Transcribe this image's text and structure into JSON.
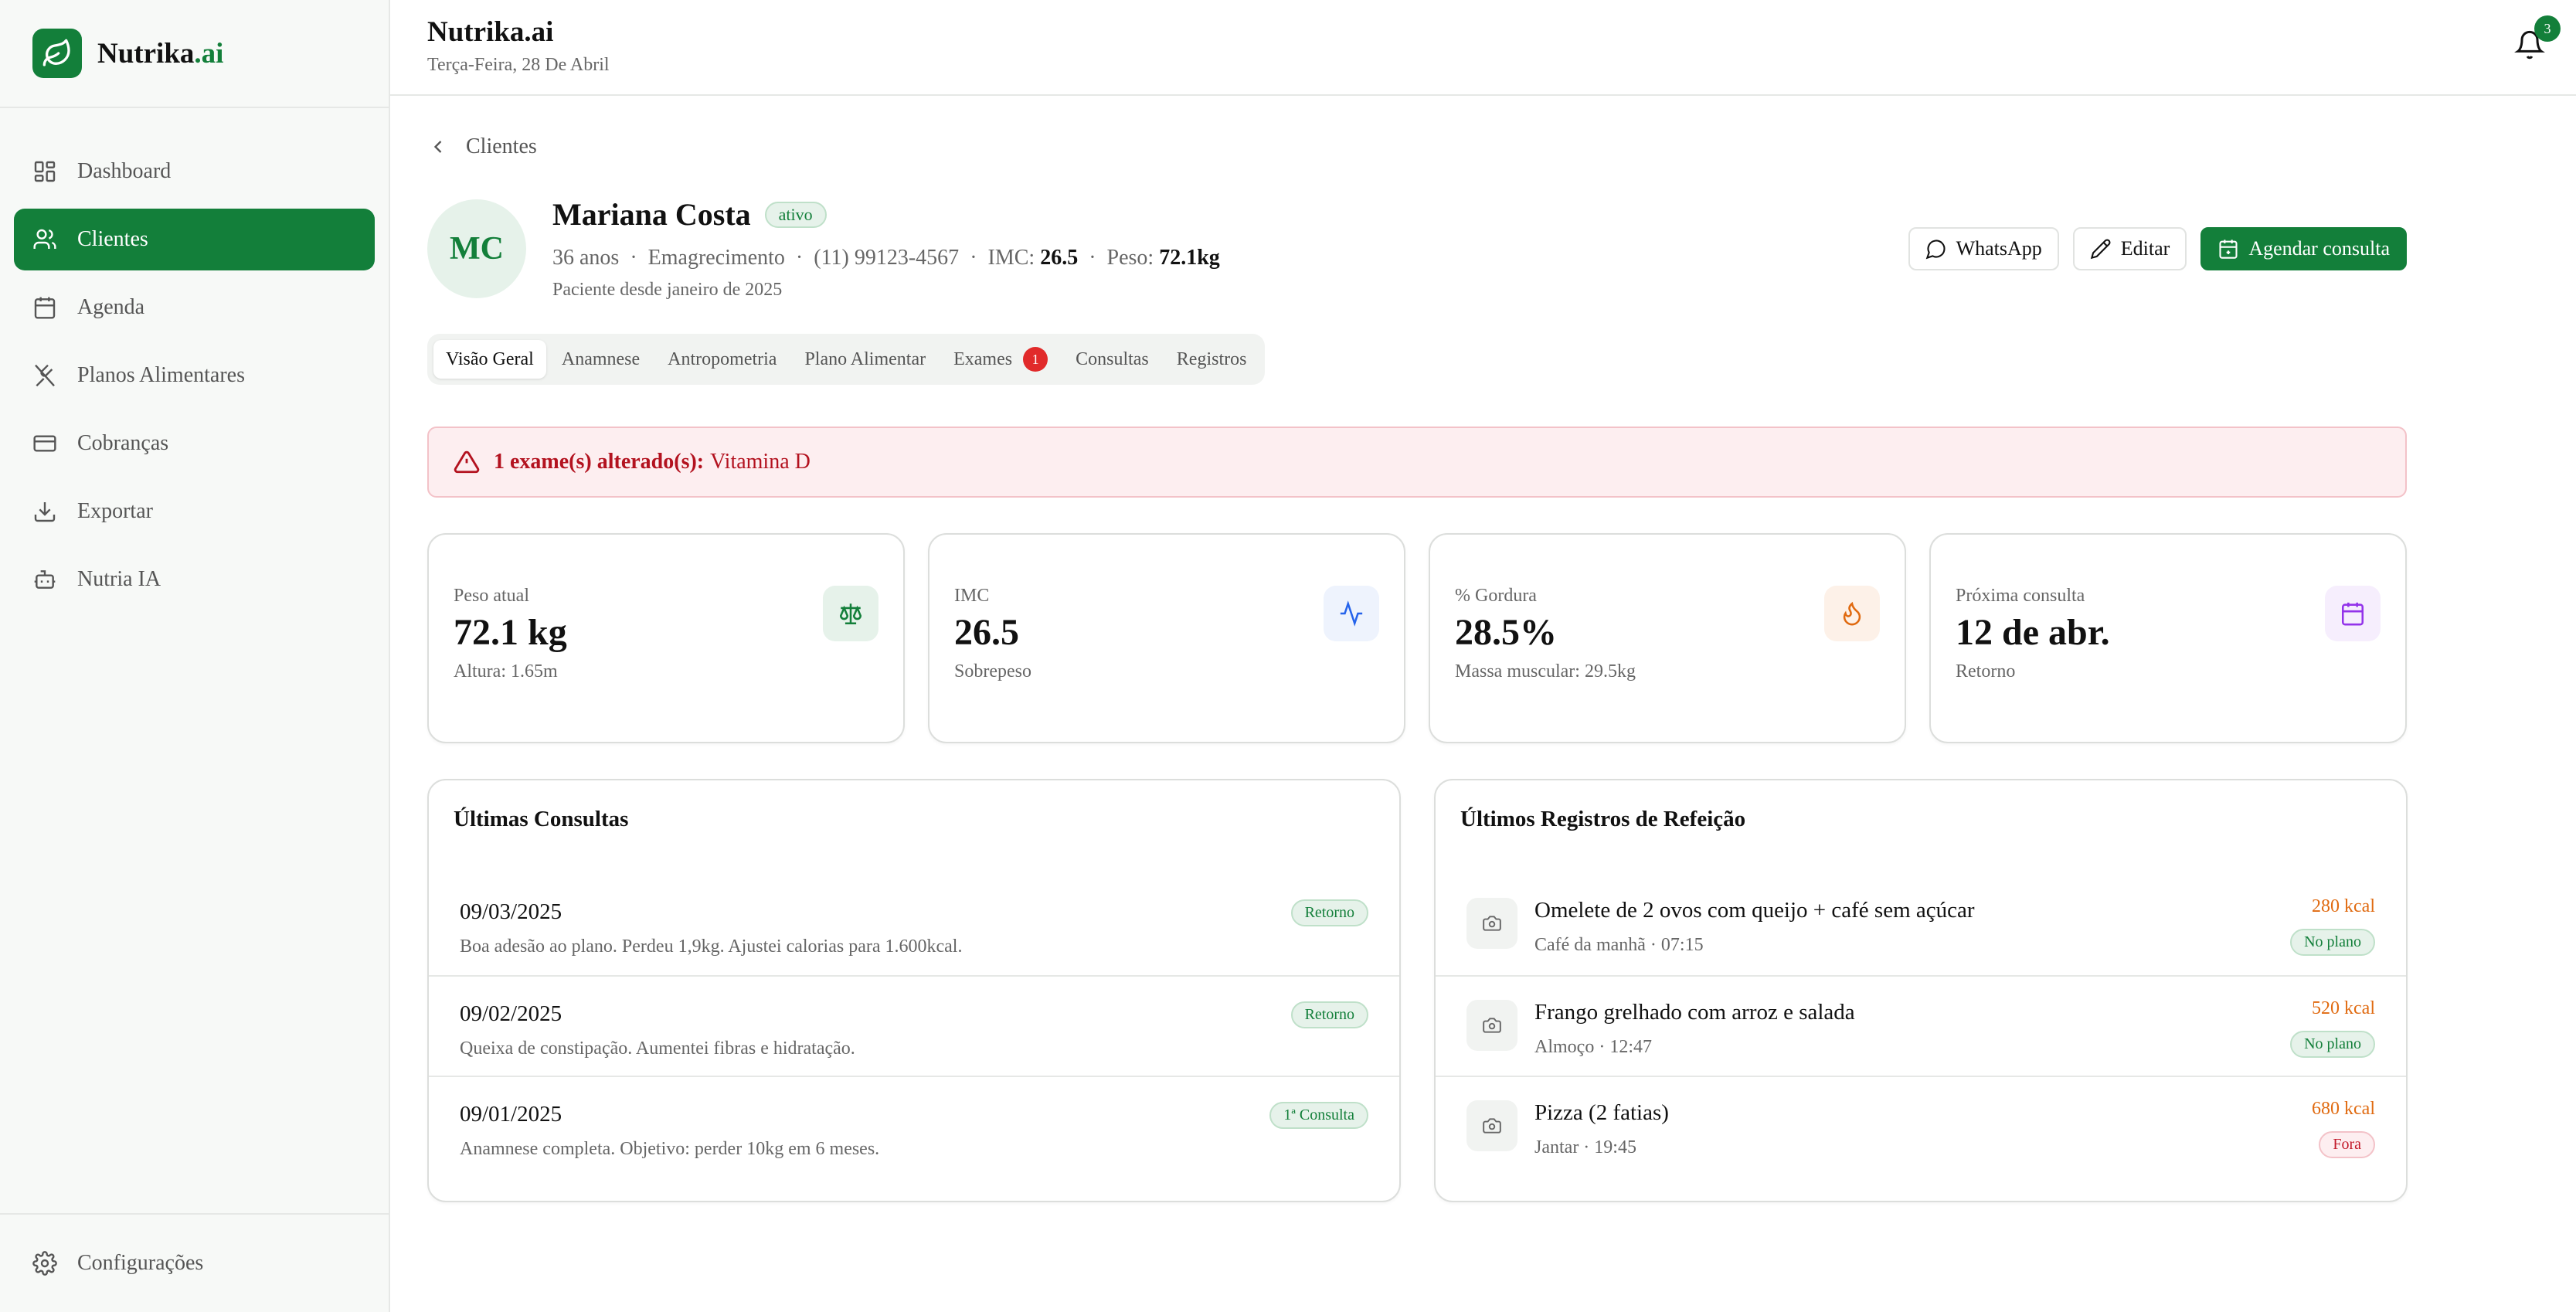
{
  "app": {
    "brand_main": "Nutrika",
    "brand_suffix": ".ai",
    "accent_color": "#137f3a"
  },
  "sidebar": {
    "items": [
      {
        "label": "Dashboard",
        "icon": "dashboard-icon"
      },
      {
        "label": "Clientes",
        "icon": "users-icon",
        "active": true
      },
      {
        "label": "Agenda",
        "icon": "calendar-icon"
      },
      {
        "label": "Planos Alimentares",
        "icon": "utensils-icon"
      },
      {
        "label": "Cobranças",
        "icon": "credit-card-icon"
      },
      {
        "label": "Exportar",
        "icon": "download-icon"
      },
      {
        "label": "Nutria IA",
        "icon": "bot-icon"
      }
    ],
    "settings_label": "Configurações"
  },
  "header": {
    "title": "Nutrika.ai",
    "date": "Terça-Feira, 28 De Abril",
    "notification_count": "3"
  },
  "breadcrumb": {
    "label": "Clientes"
  },
  "client": {
    "initials": "MC",
    "name": "Mariana Costa",
    "status": "ativo",
    "age": "36 anos",
    "goal": "Emagrecimento",
    "phone": "(11) 99123-4567",
    "imc_label": "IMC:",
    "imc_value": "26.5",
    "weight_label": "Peso:",
    "weight_value": "72.1kg",
    "since": "Paciente desde janeiro de 2025"
  },
  "actions": {
    "whatsapp": "WhatsApp",
    "edit": "Editar",
    "schedule": "Agendar consulta"
  },
  "tabs": [
    {
      "label": "Visão Geral",
      "active": true
    },
    {
      "label": "Anamnese"
    },
    {
      "label": "Antropometria"
    },
    {
      "label": "Plano Alimentar"
    },
    {
      "label": "Exames",
      "badge": "1"
    },
    {
      "label": "Consultas"
    },
    {
      "label": "Registros"
    }
  ],
  "alert": {
    "bold": "1 exame(s) alterado(s):",
    "text": "Vitamina D"
  },
  "stats": [
    {
      "label": "Peso atual",
      "value": "72.1 kg",
      "sub": "Altura: 1.65m",
      "icon": "scale-icon",
      "icon_color": "#137f3a",
      "icon_bg": "#e6f2ea"
    },
    {
      "label": "IMC",
      "value": "26.5",
      "sub": "Sobrepeso",
      "icon": "activity-icon",
      "icon_color": "#2563eb",
      "icon_bg": "#eef3fd"
    },
    {
      "label": "% Gordura",
      "value": "28.5%",
      "sub": "Massa muscular: 29.5kg",
      "icon": "flame-icon",
      "icon_color": "#e06a10",
      "icon_bg": "#fdf1e8"
    },
    {
      "label": "Próxima consulta",
      "value": "12 de abr.",
      "sub": "Retorno",
      "icon": "calendar-icon",
      "icon_color": "#9333ea",
      "icon_bg": "#f6eefd"
    }
  ],
  "consultations": {
    "title": "Últimas Consultas",
    "rows": [
      {
        "date": "09/03/2025",
        "note": "Boa adesão ao plano. Perdeu 1,9kg. Ajustei calorias para 1.600kcal.",
        "tag": "Retorno"
      },
      {
        "date": "09/02/2025",
        "note": "Queixa de constipação. Aumentei fibras e hidratação.",
        "tag": "Retorno"
      },
      {
        "date": "09/01/2025",
        "note": "Anamnese completa. Objetivo: perder 10kg em 6 meses.",
        "tag": "1ª Consulta"
      }
    ]
  },
  "meals": {
    "title": "Últimos Registros de Refeição",
    "rows": [
      {
        "title": "Omelete de 2 ovos com queijo + café sem açúcar",
        "sub": "Café da manhã · 07:15",
        "kcal": "280 kcal",
        "tag": "No plano",
        "in_plan": true
      },
      {
        "title": "Frango grelhado com arroz e salada",
        "sub": "Almoço · 12:47",
        "kcal": "520 kcal",
        "tag": "No plano",
        "in_plan": true
      },
      {
        "title": "Pizza (2 fatias)",
        "sub": "Jantar · 19:45",
        "kcal": "680 kcal",
        "tag": "Fora",
        "in_plan": false
      }
    ]
  }
}
